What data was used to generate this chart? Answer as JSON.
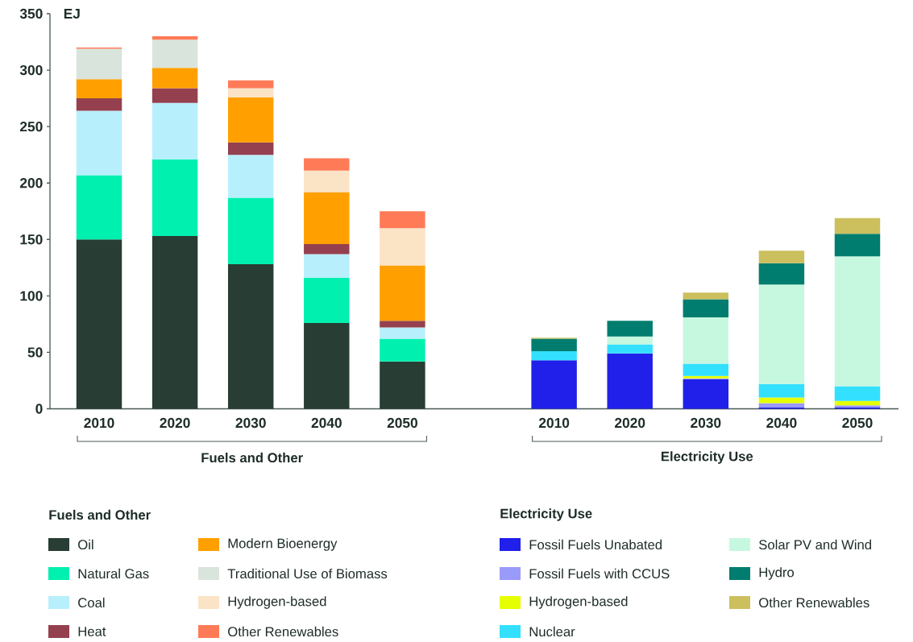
{
  "chart_data": {
    "type": "bar",
    "stacked": true,
    "ylabel": "EJ",
    "categories": [
      "2010",
      "2020",
      "2030",
      "2040",
      "2050",
      null,
      "2010",
      "2020",
      "2030",
      "2040",
      "2050"
    ],
    "ylim": [
      0,
      350
    ],
    "yticks": [
      0,
      50,
      100,
      150,
      200,
      250,
      300,
      350
    ],
    "legend": "bottom",
    "annotations": [
      "Fuels and Other",
      "Electricity Use",
      "Fuels and Other",
      "Electricity Use"
    ],
    "series": [
      {
        "name": "Oil",
        "color": "#283d33",
        "values": [
          150,
          153,
          128,
          76,
          42,
          null,
          null,
          null,
          null,
          null,
          null
        ]
      },
      {
        "name": "Natural Gas",
        "color": "#00f0b0",
        "values": [
          57,
          68,
          59,
          40,
          20,
          null,
          null,
          null,
          null,
          null,
          null
        ]
      },
      {
        "name": "Coal",
        "color": "#b8effc",
        "values": [
          57,
          50,
          38,
          21,
          10,
          null,
          null,
          null,
          null,
          null,
          null
        ]
      },
      {
        "name": "Heat",
        "color": "#94404f",
        "values": [
          11,
          13,
          11,
          9,
          6,
          null,
          null,
          null,
          null,
          null,
          null
        ]
      },
      {
        "name": "Modern Bioenergy",
        "color": "#ffa000",
        "values": [
          17,
          18,
          40,
          46,
          49,
          null,
          null,
          null,
          null,
          null,
          null
        ]
      },
      {
        "name": "Traditional Use of Biomass",
        "color": "#d9e4dc",
        "values": [
          27,
          25,
          0,
          0,
          0,
          null,
          null,
          null,
          null,
          null,
          null
        ]
      },
      {
        "name": "Hydrogen-based",
        "color": "#fbe3c6",
        "values": [
          0,
          0,
          8,
          19,
          33,
          null,
          null,
          null,
          null,
          null,
          null
        ]
      },
      {
        "name": "Other Renewables",
        "color": "#ff7b57",
        "values": [
          1,
          3,
          7,
          11,
          15,
          null,
          null,
          null,
          null,
          null,
          null
        ]
      },
      {
        "name": "Fossil Fuels Unabated",
        "color": "#2020ea",
        "values": [
          null,
          null,
          null,
          null,
          null,
          null,
          43,
          49,
          26,
          1,
          1
        ]
      },
      {
        "name": "Fossil Fuels with CCUS",
        "color": "#9a9afa",
        "values": [
          null,
          null,
          null,
          null,
          null,
          null,
          0,
          0,
          1,
          4,
          2
        ]
      },
      {
        "name": "Hydrogen-based",
        "color": "#e6ff00",
        "values": [
          null,
          null,
          null,
          null,
          null,
          null,
          0,
          0,
          2,
          5,
          4
        ]
      },
      {
        "name": "Nuclear",
        "color": "#33e0ff",
        "values": [
          null,
          null,
          null,
          null,
          null,
          null,
          8,
          8,
          11,
          12,
          13
        ]
      },
      {
        "name": "Solar PV and Wind",
        "color": "#c6f8e0",
        "values": [
          null,
          null,
          null,
          null,
          null,
          null,
          null,
          7,
          41,
          88,
          115
        ]
      },
      {
        "name": "Hydro",
        "color": "#007d6e",
        "values": [
          null,
          null,
          null,
          null,
          null,
          null,
          11,
          14,
          16,
          19,
          20
        ]
      },
      {
        "name": "Other Renewables",
        "color": "#ccbf5e",
        "values": [
          null,
          null,
          null,
          null,
          null,
          null,
          1,
          0,
          6,
          11,
          14
        ]
      }
    ]
  }
}
